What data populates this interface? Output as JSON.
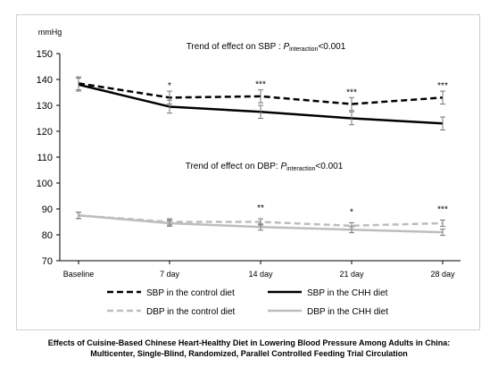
{
  "chart_data": {
    "type": "line",
    "ylabel": "mmHg",
    "ylim": [
      70,
      150
    ],
    "yticks": [
      "70",
      "80",
      "90",
      "100",
      "110",
      "120",
      "130",
      "140",
      "150"
    ],
    "categories": [
      "Baseline",
      "7 day",
      "14 day",
      "21 day",
      "28 day"
    ],
    "annotations": {
      "sbp_title_prefix": "Trend of effect on SBP : ",
      "sbp_title_p": "P",
      "sbp_title_sub": "interaction",
      "sbp_title_suffix": "<0.001",
      "dbp_title_prefix": "Trend of effect on DBP: ",
      "dbp_title_p": "P",
      "dbp_title_sub": "interaction",
      "dbp_title_suffix": "<0.001",
      "sbp_sig": [
        "",
        "*",
        "***",
        "***",
        "***"
      ],
      "dbp_sig": [
        "",
        "",
        "**",
        "*",
        "***"
      ]
    },
    "series": [
      {
        "name": "SBP in the control diet",
        "values": [
          138.5,
          133.0,
          133.5,
          130.5,
          133.0
        ],
        "err": [
          2.5,
          2.5,
          2.5,
          2.5,
          2.5
        ],
        "color": "#000000",
        "dash": true
      },
      {
        "name": "SBP in the CHH diet",
        "values": [
          138.0,
          129.5,
          127.5,
          125.0,
          123.0
        ],
        "err": [
          2.5,
          2.5,
          2.5,
          2.5,
          2.5
        ],
        "color": "#000000",
        "dash": false
      },
      {
        "name": "DBP in the control diet",
        "values": [
          87.5,
          85.0,
          85.0,
          83.5,
          84.5
        ],
        "err": [
          1.2,
          1.2,
          1.2,
          1.2,
          1.2
        ],
        "color": "#bdbdbd",
        "dash": true
      },
      {
        "name": "DBP in the CHH diet",
        "values": [
          87.5,
          84.5,
          83.0,
          82.0,
          81.0
        ],
        "err": [
          1.2,
          1.2,
          1.2,
          1.2,
          1.2
        ],
        "color": "#bdbdbd",
        "dash": false
      }
    ]
  },
  "caption": {
    "line1": "Effects of Cuisine-Based Chinese Heart-Healthy Diet in Lowering Blood Pressure Among Adults in China:",
    "line2": "Multicenter, Single-Blind, Randomized, Parallel Controlled Feeding Trial Circulation"
  }
}
